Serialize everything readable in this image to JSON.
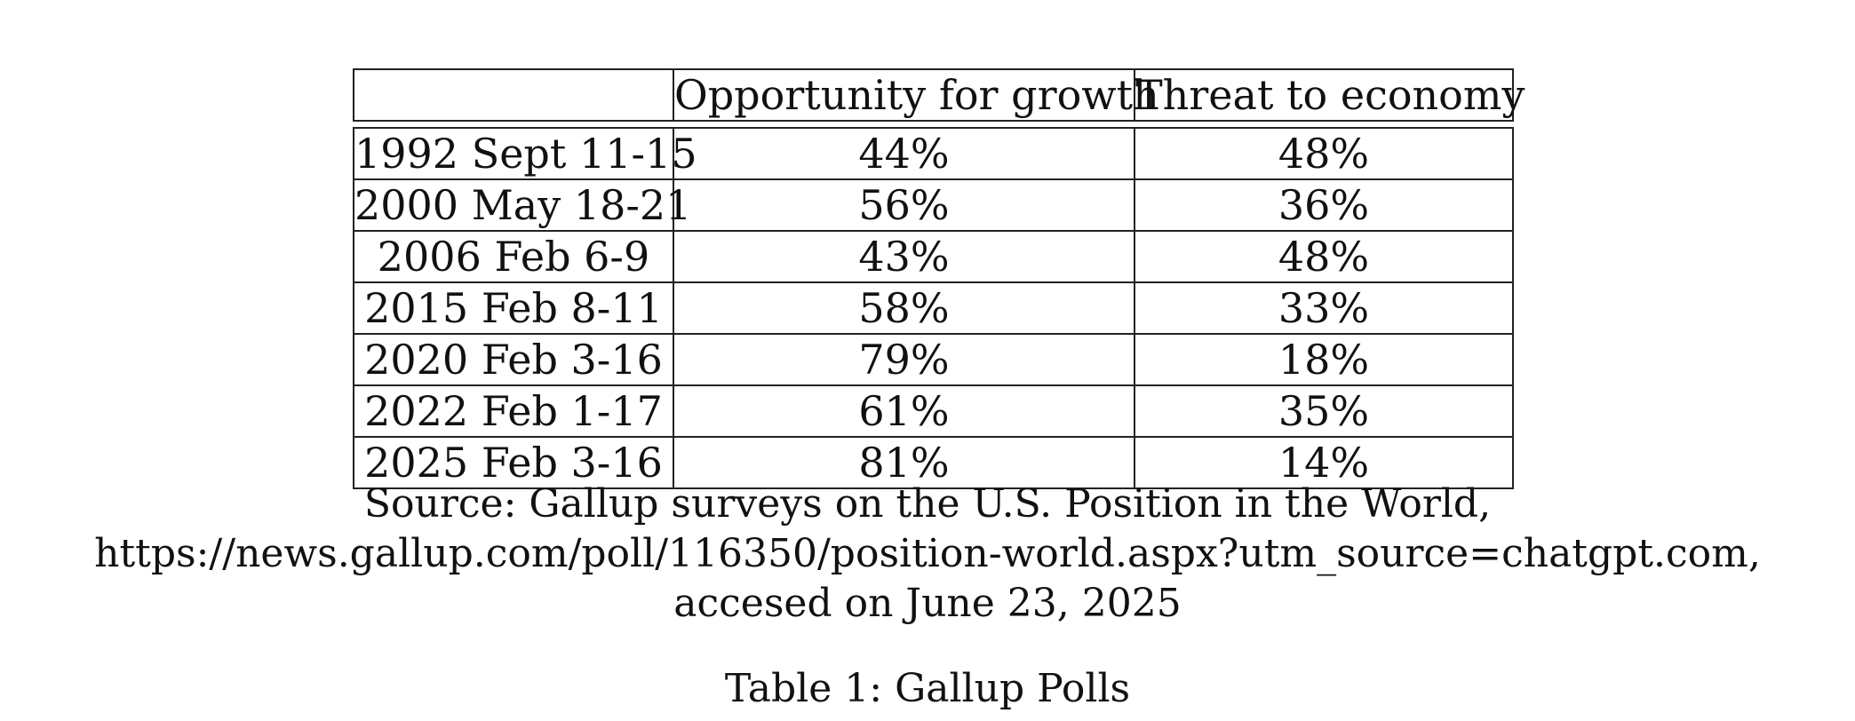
{
  "table": {
    "headers": [
      "",
      "Opportunity for growth",
      "Threat to economy"
    ],
    "rows": [
      [
        "1992 Sept 11-15",
        "44%",
        "48%"
      ],
      [
        "2000 May 18-21",
        "56%",
        "36%"
      ],
      [
        "2006 Feb 6-9",
        "43%",
        "48%"
      ],
      [
        "2015 Feb 8-11",
        "58%",
        "33%"
      ],
      [
        "2020 Feb 3-16",
        "79%",
        "18%"
      ],
      [
        "2022 Feb 1-17",
        "61%",
        "35%"
      ],
      [
        "2025 Feb 3-16",
        "81%",
        "14%"
      ]
    ]
  },
  "source": {
    "line1": "Source: Gallup surveys on the U.S. Position in the World,",
    "line2": "https://news.gallup.com/poll/116350/position-world.aspx?utm_source=chatgpt.com,",
    "line3": "accesed on June 23, 2025"
  },
  "caption": "Table 1: Gallup Polls"
}
